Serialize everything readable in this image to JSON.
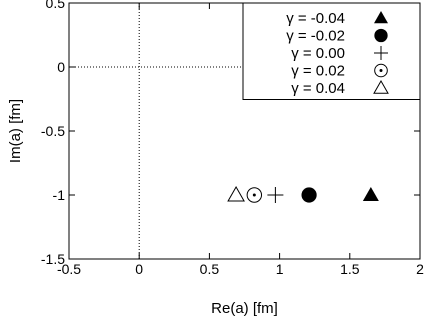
{
  "chart_data": {
    "type": "scatter",
    "xlabel": "Re(a) [fm]",
    "ylabel": "Im(a) [fm]",
    "xlim": [
      -0.5,
      2
    ],
    "ylim": [
      -1.5,
      0.5
    ],
    "x_ticks": [
      {
        "value": -0.5,
        "label": "-0.5"
      },
      {
        "value": 0,
        "label": "0"
      },
      {
        "value": 0.5,
        "label": "0.5"
      },
      {
        "value": 1,
        "label": "1"
      },
      {
        "value": 1.5,
        "label": "1.5"
      },
      {
        "value": 2,
        "label": "2"
      }
    ],
    "y_ticks": [
      {
        "value": -1.5,
        "label": "-1.5"
      },
      {
        "value": -1,
        "label": "-1"
      },
      {
        "value": -0.5,
        "label": "-0.5"
      },
      {
        "value": 0,
        "label": "0"
      },
      {
        "value": 0.5,
        "label": "0.5"
      }
    ],
    "zero_lines": {
      "x": 0,
      "y": 0,
      "style": "dotted"
    },
    "legend_position": "top-right",
    "series": [
      {
        "name": "γ = -0.04",
        "marker": "filled-triangle",
        "points": [
          [
            1.65,
            -1.0
          ]
        ]
      },
      {
        "name": "γ = -0.02",
        "marker": "filled-circle",
        "points": [
          [
            1.21,
            -1.0
          ]
        ]
      },
      {
        "name": "γ = 0.00",
        "marker": "plus",
        "points": [
          [
            0.97,
            -1.0
          ]
        ]
      },
      {
        "name": "γ = 0.02",
        "marker": "circle-dot",
        "points": [
          [
            0.82,
            -1.0
          ]
        ]
      },
      {
        "name": "γ = 0.04",
        "marker": "open-triangle",
        "points": [
          [
            0.69,
            -1.0
          ]
        ]
      }
    ]
  }
}
